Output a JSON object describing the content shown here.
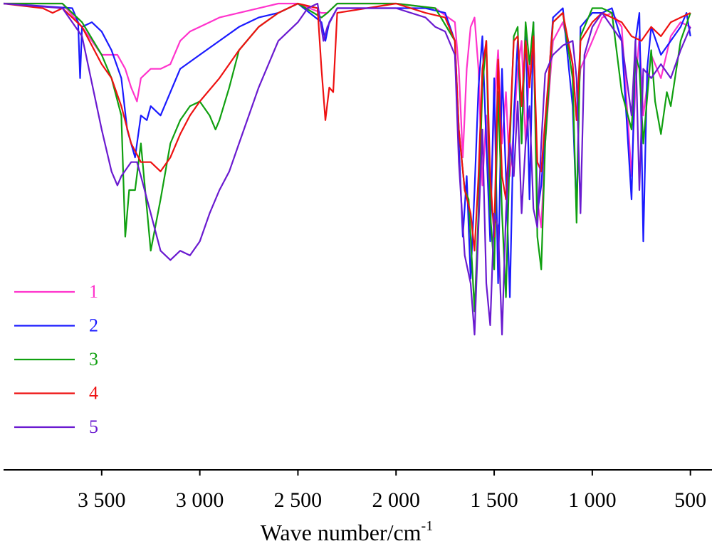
{
  "chart_data": {
    "type": "line",
    "xlabel": "Wave number/cm",
    "xlabel_sup": "-1",
    "xlim": [
      4000,
      390
    ],
    "ylim": [
      0,
      100
    ],
    "xticks": [
      {
        "value": 3500,
        "label": "3 500"
      },
      {
        "value": 3000,
        "label": "3 000"
      },
      {
        "value": 2500,
        "label": "2 500"
      },
      {
        "value": 2000,
        "label": "2 000"
      },
      {
        "value": 1500,
        "label": "1 500"
      },
      {
        "value": 1000,
        "label": "1 000"
      },
      500
    ],
    "legend": "lower-left",
    "series": [
      {
        "name": "1",
        "color": "#ff33cc",
        "x": [
          4000,
          3700,
          3600,
          3500,
          3420,
          3380,
          3350,
          3320,
          3300,
          3250,
          3200,
          3150,
          3100,
          3050,
          3000,
          2950,
          2900,
          2800,
          2600,
          2500,
          2380,
          2350,
          2300,
          2000,
          1800,
          1700,
          1680,
          1660,
          1640,
          1620,
          1600,
          1580,
          1560,
          1540,
          1520,
          1500,
          1480,
          1460,
          1440,
          1420,
          1400,
          1380,
          1360,
          1340,
          1320,
          1300,
          1280,
          1260,
          1240,
          1200,
          1150,
          1100,
          1080,
          1060,
          1000,
          950,
          900,
          850,
          800,
          780,
          760,
          740,
          700,
          650,
          600,
          550,
          500
        ],
        "values": [
          100,
          100,
          95,
          89,
          89,
          86,
          82,
          79,
          84,
          86,
          86,
          87,
          92,
          94,
          95,
          96,
          97,
          98,
          100,
          100,
          98,
          98,
          100,
          100,
          99,
          96,
          86,
          67,
          86,
          95,
          97,
          86,
          61,
          76,
          55,
          78,
          90,
          70,
          81,
          63,
          73,
          86,
          92,
          70,
          87,
          92,
          58,
          52,
          70,
          92,
          96,
          87,
          75,
          86,
          92,
          97,
          98,
          95,
          63,
          82,
          93,
          76,
          89,
          84,
          93,
          96,
          95
        ]
      },
      {
        "name": "2",
        "color": "#1a1aff",
        "x": [
          4000,
          3650,
          3620,
          3610,
          3600,
          3550,
          3500,
          3450,
          3400,
          3370,
          3330,
          3300,
          3270,
          3250,
          3200,
          3150,
          3100,
          3000,
          2900,
          2800,
          2700,
          2600,
          2500,
          2380,
          2360,
          2340,
          2300,
          2000,
          1850,
          1750,
          1700,
          1680,
          1660,
          1640,
          1620,
          1600,
          1580,
          1560,
          1540,
          1520,
          1500,
          1480,
          1460,
          1440,
          1420,
          1400,
          1380,
          1360,
          1340,
          1320,
          1300,
          1280,
          1260,
          1240,
          1200,
          1150,
          1100,
          1080,
          1060,
          1000,
          950,
          900,
          850,
          800,
          780,
          760,
          740,
          720,
          700,
          650,
          600,
          550,
          520,
          500
        ],
        "values": [
          100,
          99,
          96,
          84,
          95,
          96,
          94,
          90,
          84,
          73,
          67,
          76,
          75,
          78,
          76,
          81,
          86,
          89,
          92,
          95,
          97,
          98,
          100,
          96,
          92,
          96,
          99,
          99,
          99,
          98,
          92,
          70,
          50,
          63,
          41,
          60,
          82,
          93,
          70,
          49,
          84,
          40,
          86,
          63,
          37,
          76,
          92,
          70,
          95,
          58,
          96,
          55,
          61,
          73,
          97,
          99,
          78,
          55,
          95,
          98,
          98,
          99,
          92,
          58,
          92,
          98,
          49,
          86,
          95,
          89,
          92,
          95,
          98,
          93
        ]
      },
      {
        "name": "3",
        "color": "#10a010",
        "x": [
          4000,
          3700,
          3600,
          3500,
          3450,
          3400,
          3380,
          3360,
          3330,
          3300,
          3250,
          3200,
          3150,
          3100,
          3050,
          3000,
          2950,
          2920,
          2900,
          2850,
          2800,
          2700,
          2600,
          2500,
          2380,
          2350,
          2300,
          2000,
          1800,
          1700,
          1680,
          1650,
          1630,
          1600,
          1580,
          1560,
          1540,
          1520,
          1500,
          1480,
          1460,
          1440,
          1420,
          1400,
          1380,
          1360,
          1340,
          1320,
          1300,
          1280,
          1260,
          1240,
          1200,
          1150,
          1100,
          1080,
          1060,
          1000,
          950,
          900,
          850,
          800,
          780,
          760,
          740,
          700,
          680,
          650,
          620,
          600,
          550,
          500
        ],
        "values": [
          100,
          100,
          96,
          89,
          84,
          76,
          50,
          60,
          60,
          70,
          47,
          58,
          70,
          75,
          78,
          79,
          76,
          73,
          75,
          82,
          90,
          95,
          98,
          100,
          97,
          98,
          100,
          100,
          99,
          92,
          73,
          60,
          58,
          34,
          55,
          82,
          92,
          55,
          43,
          81,
          55,
          37,
          70,
          93,
          95,
          70,
          96,
          87,
          96,
          50,
          43,
          70,
          96,
          98,
          84,
          53,
          93,
          99,
          99,
          98,
          81,
          73,
          89,
          86,
          70,
          90,
          79,
          72,
          81,
          78,
          92,
          98
        ]
      },
      {
        "name": "4",
        "color": "#ee1111",
        "x": [
          4000,
          3800,
          3750,
          3700,
          3600,
          3500,
          3450,
          3400,
          3350,
          3300,
          3250,
          3200,
          3150,
          3100,
          3050,
          3000,
          2900,
          2800,
          2700,
          2600,
          2500,
          2400,
          2380,
          2360,
          2340,
          2320,
          2300,
          2000,
          1850,
          1750,
          1700,
          1680,
          1650,
          1620,
          1600,
          1580,
          1560,
          1540,
          1520,
          1500,
          1480,
          1460,
          1440,
          1420,
          1400,
          1380,
          1360,
          1340,
          1320,
          1300,
          1280,
          1260,
          1240,
          1200,
          1150,
          1100,
          1080,
          1060,
          1000,
          950,
          900,
          850,
          800,
          750,
          700,
          650,
          600,
          550,
          500
        ],
        "values": [
          100,
          99,
          98,
          99,
          95,
          87,
          84,
          78,
          70,
          66,
          66,
          64,
          67,
          72,
          76,
          79,
          84,
          90,
          95,
          98,
          100,
          99,
          86,
          75,
          82,
          81,
          98,
          100,
          98,
          97,
          92,
          73,
          60,
          55,
          47,
          63,
          86,
          92,
          63,
          50,
          88,
          63,
          58,
          73,
          92,
          93,
          78,
          92,
          82,
          93,
          66,
          64,
          75,
          96,
          98,
          87,
          75,
          92,
          96,
          98,
          97,
          96,
          93,
          92,
          95,
          93,
          96,
          97,
          98
        ]
      },
      {
        "name": "5",
        "color": "#6a1ad0",
        "x": [
          4000,
          3700,
          3600,
          3500,
          3450,
          3420,
          3400,
          3350,
          3320,
          3300,
          3250,
          3200,
          3150,
          3100,
          3050,
          3000,
          2950,
          2900,
          2850,
          2800,
          2700,
          2600,
          2500,
          2450,
          2400,
          2370,
          2350,
          2300,
          2000,
          1850,
          1800,
          1750,
          1700,
          1680,
          1650,
          1620,
          1600,
          1580,
          1560,
          1540,
          1520,
          1500,
          1480,
          1460,
          1440,
          1420,
          1400,
          1380,
          1360,
          1340,
          1320,
          1300,
          1280,
          1260,
          1240,
          1200,
          1150,
          1100,
          1080,
          1060,
          1040,
          1000,
          950,
          900,
          850,
          800,
          780,
          760,
          740,
          700,
          650,
          600,
          550,
          500
        ],
        "values": [
          100,
          99,
          93,
          73,
          64,
          61,
          63,
          66,
          66,
          63,
          55,
          47,
          45,
          47,
          46,
          49,
          55,
          60,
          64,
          70,
          82,
          92,
          96,
          99,
          100,
          92,
          95,
          99,
          99,
          97,
          95,
          94,
          89,
          66,
          46,
          40,
          29,
          52,
          73,
          40,
          31,
          55,
          52,
          29,
          55,
          70,
          63,
          79,
          55,
          70,
          78,
          56,
          52,
          70,
          85,
          89,
          91,
          92,
          84,
          55,
          89,
          95,
          98,
          95,
          92,
          76,
          92,
          60,
          86,
          84,
          87,
          84,
          90,
          95
        ]
      }
    ]
  }
}
